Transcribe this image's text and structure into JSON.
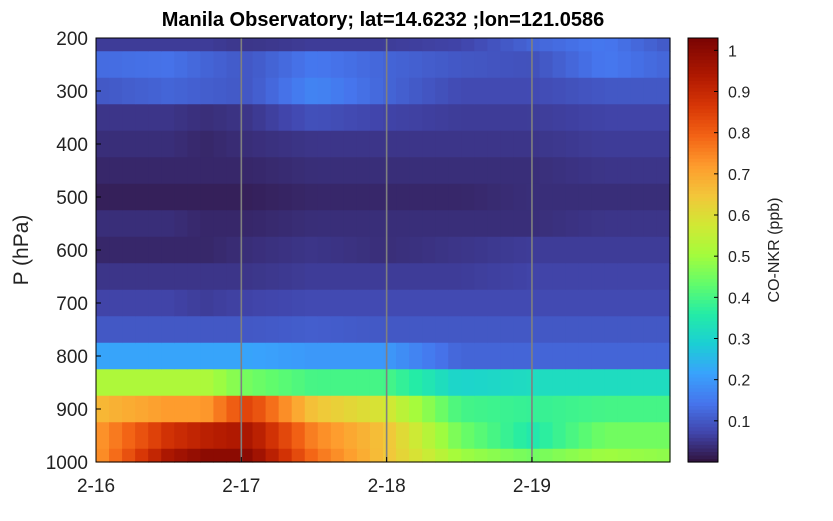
{
  "chart_data": {
    "type": "heatmap",
    "title": "Manila Observatory; lat=14.6232 ;lon=121.0586",
    "xlabel": "",
    "ylabel": "P (hPa)",
    "colorbar_label": "CO-NKR (ppb)",
    "colormap": "turbo",
    "x_ticks": [
      "2-16",
      "2-17",
      "2-18",
      "2-19"
    ],
    "y_ticks": [
      "200",
      "300",
      "400",
      "500",
      "600",
      "700",
      "800",
      "900",
      "1000"
    ],
    "colorbar_ticks": [
      "0.1",
      "0.2",
      "0.3",
      "0.4",
      "0.5",
      "0.6",
      "0.7",
      "0.8",
      "0.9",
      "1"
    ],
    "xlim_days": [
      0,
      3.95
    ],
    "ylim": [
      200,
      1000
    ],
    "clim": [
      0,
      1.03
    ],
    "y_reversed": true,
    "vertical_gridlines_at_days": [
      1,
      2,
      3
    ],
    "vertical_gridline_color": "#808080",
    "pressure_levels_hPa": [
      200,
      250,
      300,
      350,
      400,
      450,
      500,
      550,
      600,
      650,
      700,
      750,
      800,
      850,
      900,
      950,
      1000
    ],
    "time_columns": 44,
    "profiles": [
      {
        "time_day": 0.0,
        "values": [
          0.06,
          0.13,
          0.1,
          0.05,
          0.04,
          0.03,
          0.02,
          0.04,
          0.03,
          0.05,
          0.07,
          0.1,
          0.22,
          0.52,
          0.67,
          0.72,
          0.72
        ]
      },
      {
        "time_day": 0.5,
        "values": [
          0.06,
          0.14,
          0.12,
          0.05,
          0.04,
          0.03,
          0.02,
          0.04,
          0.03,
          0.05,
          0.07,
          0.1,
          0.22,
          0.52,
          0.72,
          0.88,
          0.95
        ]
      },
      {
        "time_day": 0.75,
        "values": [
          0.06,
          0.12,
          0.11,
          0.04,
          0.03,
          0.03,
          0.02,
          0.03,
          0.03,
          0.05,
          0.06,
          0.1,
          0.22,
          0.52,
          0.72,
          0.92,
          1.0
        ]
      },
      {
        "time_day": 1.05,
        "values": [
          0.05,
          0.1,
          0.1,
          0.05,
          0.04,
          0.03,
          0.02,
          0.03,
          0.04,
          0.05,
          0.07,
          0.1,
          0.22,
          0.45,
          0.85,
          0.95,
          1.0
        ]
      },
      {
        "time_day": 1.5,
        "values": [
          0.06,
          0.15,
          0.17,
          0.09,
          0.05,
          0.04,
          0.03,
          0.04,
          0.05,
          0.06,
          0.08,
          0.11,
          0.2,
          0.4,
          0.65,
          0.75,
          0.78
        ]
      },
      {
        "time_day": 2.0,
        "values": [
          0.06,
          0.12,
          0.12,
          0.07,
          0.05,
          0.04,
          0.03,
          0.04,
          0.04,
          0.06,
          0.08,
          0.1,
          0.2,
          0.4,
          0.58,
          0.65,
          0.65
        ]
      },
      {
        "time_day": 2.5,
        "values": [
          0.07,
          0.1,
          0.08,
          0.06,
          0.05,
          0.04,
          0.03,
          0.04,
          0.05,
          0.06,
          0.08,
          0.1,
          0.12,
          0.3,
          0.4,
          0.45,
          0.5
        ]
      },
      {
        "time_day": 3.0,
        "values": [
          0.12,
          0.09,
          0.08,
          0.06,
          0.05,
          0.04,
          0.04,
          0.04,
          0.06,
          0.07,
          0.08,
          0.1,
          0.12,
          0.32,
          0.38,
          0.35,
          0.45
        ]
      },
      {
        "time_day": 3.5,
        "values": [
          0.15,
          0.15,
          0.1,
          0.07,
          0.06,
          0.05,
          0.04,
          0.05,
          0.06,
          0.07,
          0.08,
          0.1,
          0.12,
          0.32,
          0.4,
          0.45,
          0.5
        ]
      },
      {
        "time_day": 3.95,
        "values": [
          0.1,
          0.12,
          0.1,
          0.07,
          0.06,
          0.05,
          0.04,
          0.05,
          0.06,
          0.07,
          0.08,
          0.1,
          0.12,
          0.32,
          0.4,
          0.45,
          0.48
        ]
      }
    ]
  }
}
